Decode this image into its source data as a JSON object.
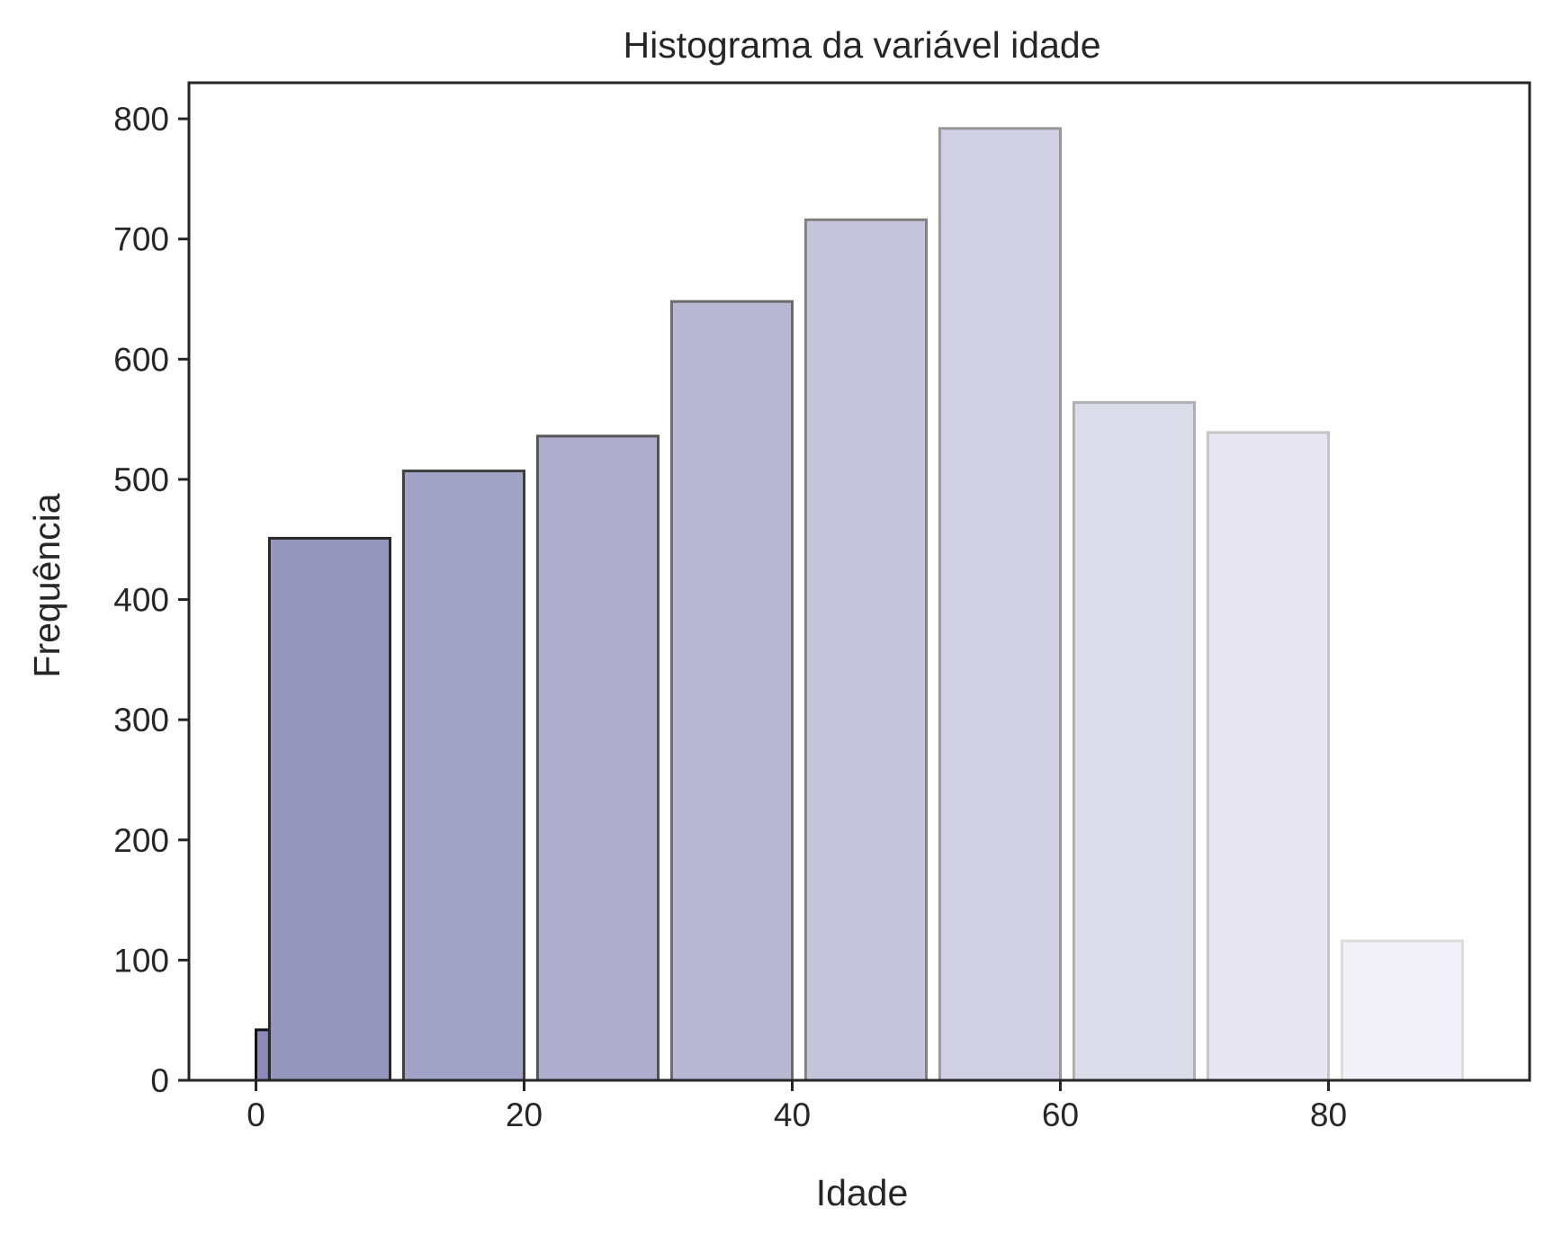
{
  "chart_data": {
    "type": "bar",
    "title": "Histograma da variável idade",
    "xlabel": "Idade",
    "ylabel": "Frequência",
    "xlim": [
      -5,
      95
    ],
    "ylim": [
      0,
      830
    ],
    "xticks": [
      0,
      20,
      40,
      60,
      80
    ],
    "yticks": [
      0,
      100,
      200,
      300,
      400,
      500,
      600,
      700,
      800
    ],
    "grid": false,
    "bins": [
      {
        "x0": 0,
        "x1": 1,
        "value": 42
      },
      {
        "x0": 1,
        "x1": 10,
        "value": 451
      },
      {
        "x0": 11,
        "x1": 20,
        "value": 507
      },
      {
        "x0": 21,
        "x1": 30,
        "value": 536
      },
      {
        "x0": 31,
        "x1": 40,
        "value": 648
      },
      {
        "x0": 41,
        "x1": 50,
        "value": 716
      },
      {
        "x0": 51,
        "x1": 60,
        "value": 792
      },
      {
        "x0": 61,
        "x1": 70,
        "value": 564
      },
      {
        "x0": 71,
        "x1": 80,
        "value": 539
      },
      {
        "x0": 81,
        "x1": 90,
        "value": 116
      }
    ],
    "colors": {
      "fill_start": "#8b8ab8",
      "fill_end": "#f3f2f8",
      "edge_start": "#111111",
      "edge_end": "#dcdcdc",
      "axis": "#262626"
    }
  }
}
